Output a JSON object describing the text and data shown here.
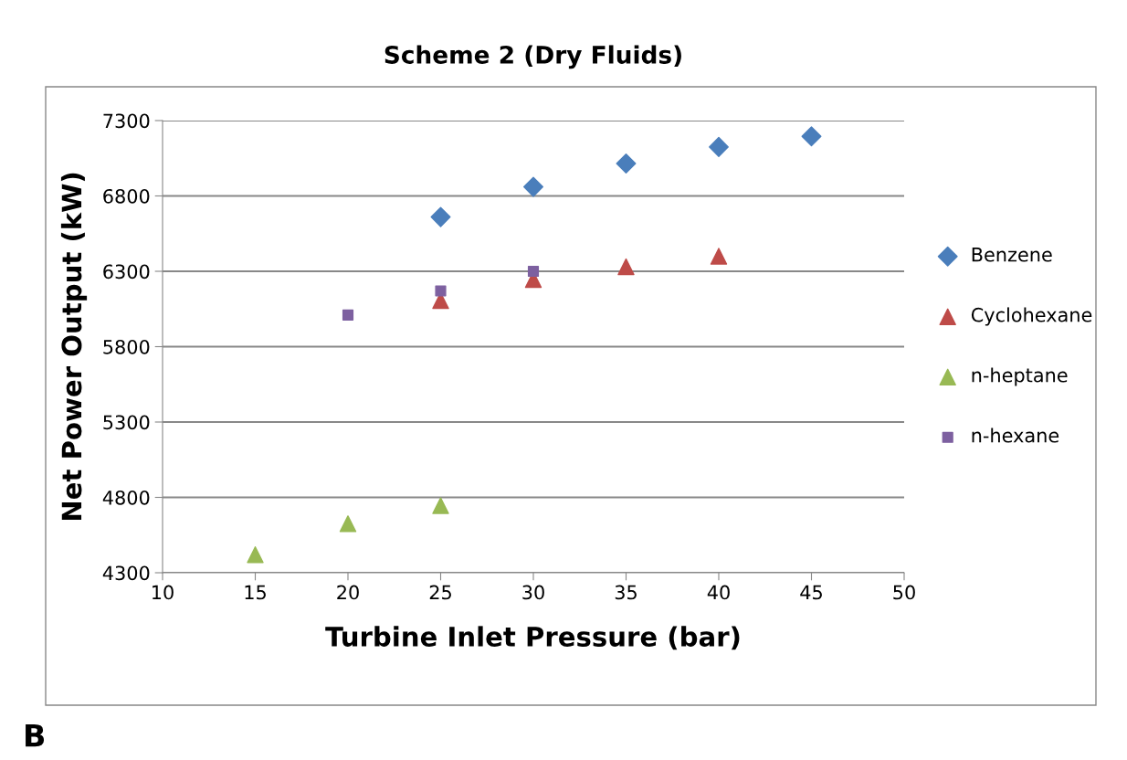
{
  "chart_data": {
    "type": "scatter",
    "title": "Scheme 2 (Dry Fluids)",
    "xlabel": "Turbine Inlet Pressure (bar)",
    "ylabel": "Net Power Output (kW)",
    "xlim": [
      10,
      50
    ],
    "xticks": [
      10,
      15,
      20,
      25,
      30,
      35,
      40,
      45,
      50
    ],
    "ylim": [
      4300,
      7300
    ],
    "yticks": [
      4300,
      4800,
      5300,
      5800,
      6300,
      6800,
      7300
    ],
    "grid": "y",
    "legend": "right",
    "series": [
      {
        "name": "Benzene",
        "color": "#4a7ebb",
        "marker": "diamond",
        "x": [
          25,
          30,
          35,
          40,
          45
        ],
        "values": [
          6660,
          6860,
          7015,
          7125,
          7195
        ]
      },
      {
        "name": "Cyclohexane",
        "color": "#be4b48",
        "marker": "triangle",
        "x": [
          25,
          30,
          35,
          40
        ],
        "values": [
          6105,
          6245,
          6330,
          6400
        ]
      },
      {
        "name": "n-heptane",
        "color": "#98b954",
        "marker": "triangle",
        "x": [
          15,
          20,
          25
        ],
        "values": [
          4420,
          4625,
          4745
        ]
      },
      {
        "name": "n-hexane",
        "color": "#7d60a0",
        "marker": "square",
        "x": [
          20,
          25,
          30
        ],
        "values": [
          6010,
          6170,
          6300
        ]
      }
    ],
    "annotations": [
      "B"
    ]
  }
}
